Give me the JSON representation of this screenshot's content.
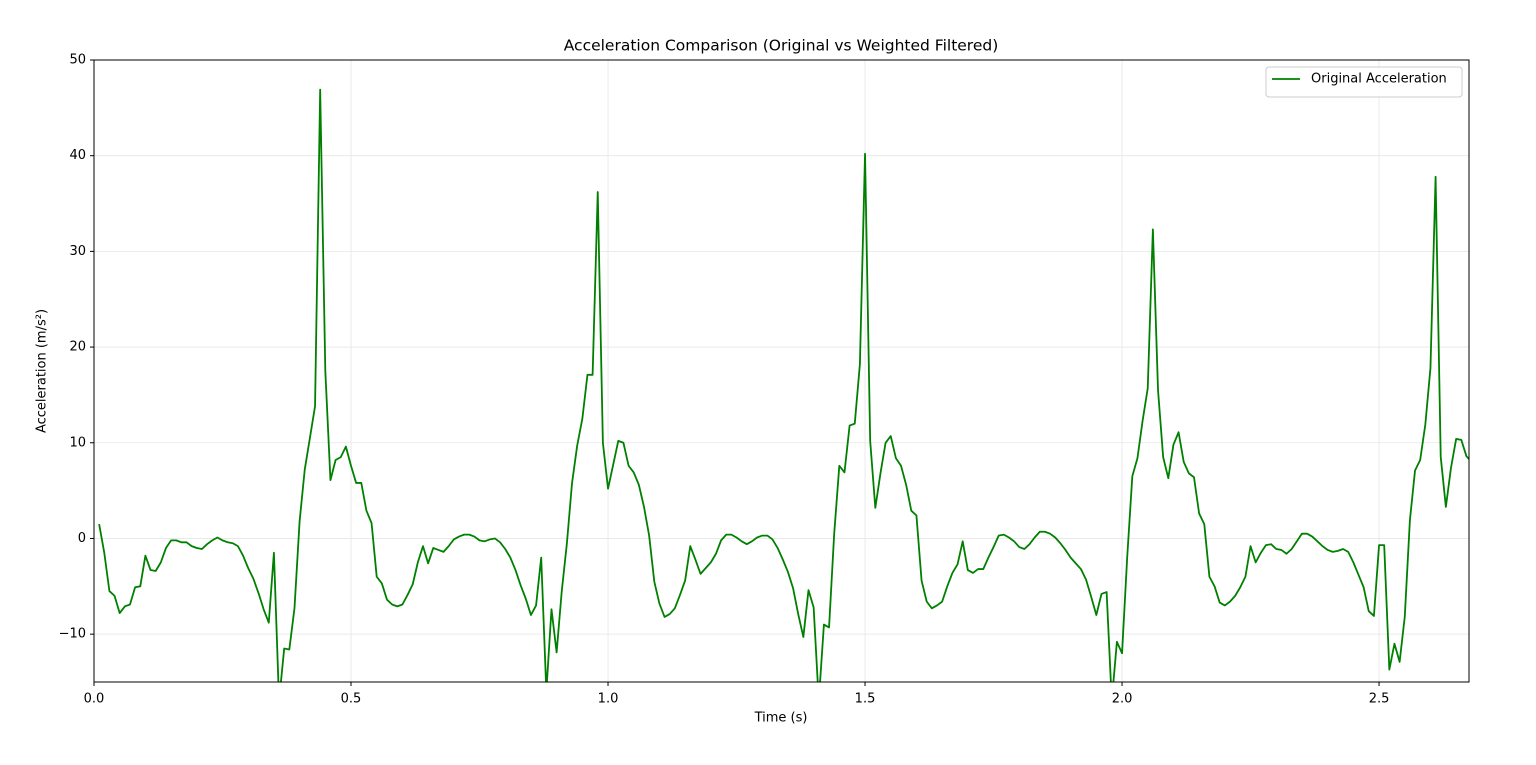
{
  "chart_data": {
    "type": "line",
    "title": "Acceleration Comparison (Original vs Weighted Filtered)",
    "x_label": "Time (s)",
    "y_label": "Acceleration (m/s²)",
    "x": [
      0.01,
      0.02,
      0.03,
      0.04,
      0.05,
      0.06,
      0.07,
      0.08,
      0.09,
      0.1,
      0.11,
      0.12,
      0.13,
      0.14,
      0.15,
      0.16,
      0.17,
      0.18,
      0.19,
      0.2,
      0.21,
      0.22,
      0.23,
      0.24,
      0.25,
      0.26,
      0.27,
      0.28,
      0.29,
      0.3,
      0.31,
      0.32,
      0.33,
      0.34,
      0.35,
      0.36,
      0.37,
      0.38,
      0.39,
      0.4,
      0.41,
      0.42,
      0.43,
      0.44,
      0.45,
      0.46,
      0.47,
      0.48,
      0.49,
      0.5,
      0.51,
      0.52,
      0.53,
      0.54,
      0.55,
      0.56,
      0.57,
      0.58,
      0.59,
      0.6,
      0.61,
      0.62,
      0.63,
      0.64,
      0.65,
      0.66,
      0.67,
      0.68,
      0.69,
      0.7,
      0.71,
      0.72,
      0.73,
      0.74,
      0.75,
      0.76,
      0.77,
      0.78,
      0.79,
      0.8,
      0.81,
      0.82,
      0.83,
      0.84,
      0.85,
      0.86,
      0.87,
      0.88,
      0.89,
      0.9,
      0.91,
      0.92,
      0.93,
      0.94,
      0.95,
      0.96,
      0.97,
      0.98,
      0.99,
      1.0,
      1.01,
      1.02,
      1.03,
      1.04,
      1.05,
      1.06,
      1.07,
      1.08,
      1.09,
      1.1,
      1.11,
      1.12,
      1.13,
      1.14,
      1.15,
      1.16,
      1.17,
      1.18,
      1.19,
      1.2,
      1.21,
      1.22,
      1.23,
      1.24,
      1.25,
      1.26,
      1.27,
      1.28,
      1.29,
      1.3,
      1.31,
      1.32,
      1.33,
      1.34,
      1.35,
      1.36,
      1.37,
      1.38,
      1.39,
      1.4,
      1.41,
      1.42,
      1.43,
      1.44,
      1.45,
      1.46,
      1.47,
      1.48,
      1.49,
      1.5,
      1.51,
      1.52,
      1.53,
      1.54,
      1.55,
      1.56,
      1.57,
      1.58,
      1.59,
      1.6,
      1.61,
      1.62,
      1.63,
      1.64,
      1.65,
      1.66,
      1.67,
      1.68,
      1.69,
      1.7,
      1.71,
      1.72,
      1.73,
      1.74,
      1.75,
      1.76,
      1.77,
      1.78,
      1.79,
      1.8,
      1.81,
      1.82,
      1.83,
      1.84,
      1.85,
      1.86,
      1.87,
      1.88,
      1.89,
      1.9,
      1.91,
      1.92,
      1.93,
      1.94,
      1.95,
      1.96,
      1.97,
      1.98,
      1.99,
      2.0,
      2.01,
      2.02,
      2.03,
      2.04,
      2.05,
      2.06,
      2.07,
      2.08,
      2.09,
      2.1,
      2.11,
      2.12,
      2.13,
      2.14,
      2.15,
      2.16,
      2.17,
      2.18,
      2.19,
      2.2,
      2.21,
      2.22,
      2.23,
      2.24,
      2.25,
      2.26,
      2.27,
      2.28,
      2.29,
      2.3,
      2.31,
      2.32,
      2.33,
      2.34,
      2.35,
      2.36,
      2.37,
      2.38,
      2.39,
      2.4,
      2.41,
      2.42,
      2.43,
      2.44,
      2.45,
      2.46,
      2.47,
      2.48,
      2.49,
      2.5,
      2.51,
      2.52,
      2.53,
      2.54,
      2.55,
      2.56,
      2.57,
      2.58,
      2.59,
      2.6,
      2.61,
      2.62,
      2.63,
      2.64,
      2.65,
      2.66,
      2.67,
      2.68
    ],
    "series": [
      {
        "name": "Original Acceleration",
        "color": "#008000",
        "values": [
          1.5,
          -1.5,
          -5.5,
          -6,
          -7.8,
          -7.1,
          -6.9,
          -5.1,
          -5,
          -1.8,
          -3.3,
          -3.4,
          -2.5,
          -1,
          -0.2,
          -0.2,
          -0.4,
          -0.4,
          -0.8,
          -1,
          -1.1,
          -0.6,
          -0.2,
          0.1,
          -0.2,
          -0.4,
          -0.5,
          -0.8,
          -1.8,
          -3.1,
          -4.2,
          -5.7,
          -7.4,
          -8.8,
          -1.5,
          -17,
          -11.5,
          -11.6,
          -7.3,
          1.8,
          7.2,
          10.5,
          13.8,
          46.9,
          17.5,
          6.1,
          8.2,
          8.5,
          9.6,
          7.6,
          5.8,
          5.8,
          2.9,
          1.6,
          -4,
          -4.7,
          -6.4,
          -6.9,
          -7.1,
          -6.9,
          -5.9,
          -4.8,
          -2.5,
          -0.8,
          -2.6,
          -1,
          -1.2,
          -1.4,
          -0.8,
          -0.1,
          0.2,
          0.4,
          0.4,
          0.2,
          -0.2,
          -0.3,
          -0.1,
          0,
          -0.4,
          -1.1,
          -2,
          -3.3,
          -4.9,
          -6.3,
          -8,
          -7,
          -2,
          -16,
          -7.4,
          -11.9,
          -5.5,
          -0.5,
          5.8,
          9.7,
          12.5,
          17.1,
          17.1,
          36.2,
          10,
          5.2,
          7.7,
          10.2,
          10,
          7.6,
          6.9,
          5.6,
          3.3,
          0.3,
          -4.5,
          -6.8,
          -8.2,
          -7.9,
          -7.3,
          -5.9,
          -4.4,
          -0.8,
          -2.2,
          -3.7,
          -3.1,
          -2.5,
          -1.6,
          -0.2,
          0.4,
          0.4,
          0.1,
          -0.3,
          -0.6,
          -0.3,
          0.1,
          0.3,
          0.3,
          -0.1,
          -1,
          -2.2,
          -3.5,
          -5.2,
          -7.9,
          -10.3,
          -5.4,
          -7.2,
          -17,
          -9,
          -9.3,
          0.5,
          7.6,
          6.9,
          11.8,
          12,
          18.2,
          40.2,
          10.2,
          3.2,
          6.8,
          10,
          10.7,
          8.4,
          7.6,
          5.6,
          2.9,
          2.4,
          -4.4,
          -6.6,
          -7.3,
          -7,
          -6.6,
          -5,
          -3.6,
          -2.7,
          -0.3,
          -3.3,
          -3.6,
          -3.2,
          -3.2,
          -2,
          -0.9,
          0.3,
          0.4,
          0.1,
          -0.3,
          -0.9,
          -1.1,
          -0.6,
          0.1,
          0.7,
          0.7,
          0.5,
          0.1,
          -0.5,
          -1.2,
          -2,
          -2.6,
          -3.2,
          -4.3,
          -6.1,
          -8,
          -5.8,
          -5.6,
          -17,
          -10.8,
          -12,
          -2,
          6.5,
          8.4,
          12.3,
          15.7,
          32.3,
          15.5,
          8.5,
          6.3,
          9.8,
          11.1,
          8,
          6.8,
          6.4,
          2.6,
          1.5,
          -4,
          -5,
          -6.7,
          -7,
          -6.6,
          -6,
          -5.1,
          -4,
          -0.8,
          -2.5,
          -1.5,
          -0.7,
          -0.6,
          -1.1,
          -1.2,
          -1.6,
          -1.1,
          -0.3,
          0.5,
          0.5,
          0.2,
          -0.3,
          -0.8,
          -1.2,
          -1.4,
          -1.3,
          -1.1,
          -1.4,
          -2.5,
          -3.8,
          -5.1,
          -7.6,
          -8.1,
          -0.7,
          -0.7,
          -13.7,
          -11,
          -12.9,
          -8.2,
          1.9,
          7.1,
          8.2,
          11.9,
          17.8,
          37.8,
          8.5,
          3.3,
          7.4,
          10.4,
          10.3,
          8.6,
          8
        ]
      }
    ],
    "xlim": [
      0,
      2.675
    ],
    "ylim": [
      -15,
      50
    ],
    "xticks": [
      {
        "value": 0,
        "label": "0.0"
      },
      0.5,
      {
        "value": 1,
        "label": "1.0"
      },
      1.5,
      {
        "value": 2,
        "label": "2.0"
      },
      2.5
    ],
    "yticks": [
      {
        "value": -10,
        "label": "−10"
      },
      0,
      10,
      20,
      30,
      40,
      50
    ],
    "grid": true,
    "legend": "upper right"
  }
}
